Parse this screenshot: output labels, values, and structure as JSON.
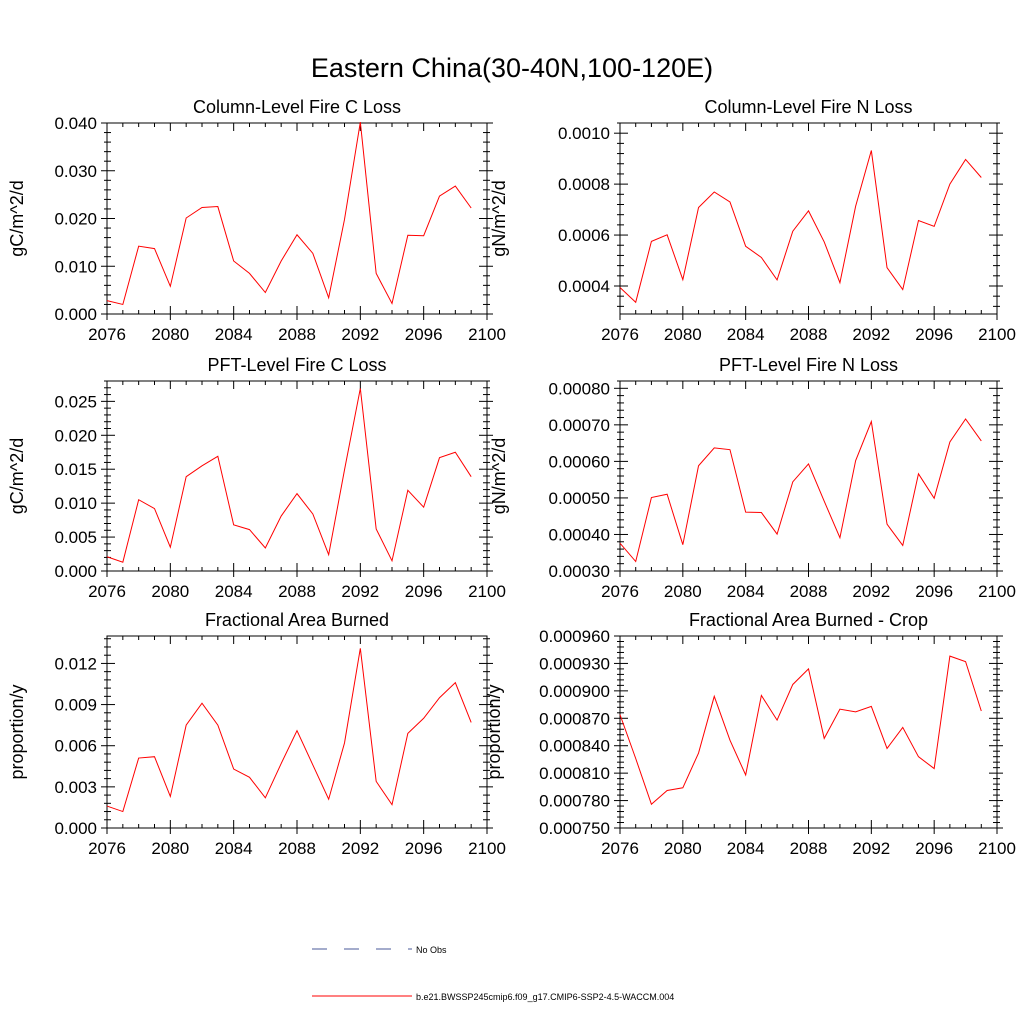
{
  "figure": {
    "title": "Eastern China(30-40N,100-120E)",
    "legend": [
      {
        "label": "No Obs",
        "color": "#4a5a9a",
        "style": "dashed"
      },
      {
        "label": "b.e21.BWSSP245cmip6.f09_g17.CMIP6-SSP2-4.5-WACCM.004",
        "color": "#ff0000",
        "style": "solid"
      }
    ]
  },
  "chart_data": [
    {
      "type": "line",
      "title": "Column-Level Fire C Loss",
      "ylabel": "gC/m^2/d",
      "xlim": [
        2076,
        2100
      ],
      "ylim": [
        0.0,
        0.04
      ],
      "xticks": [
        2076,
        2080,
        2084,
        2088,
        2092,
        2096,
        2100
      ],
      "yticks": [
        0.0,
        0.01,
        0.02,
        0.03,
        0.04
      ],
      "ytick_labels": [
        "0.000",
        "0.010",
        "0.020",
        "0.030",
        "0.040"
      ],
      "x": [
        2076,
        2077,
        2078,
        2079,
        2080,
        2081,
        2082,
        2083,
        2084,
        2085,
        2086,
        2087,
        2088,
        2089,
        2090,
        2091,
        2092,
        2093,
        2094,
        2095,
        2096,
        2097,
        2098,
        2099
      ],
      "series": [
        {
          "color": "#ff0000",
          "values": [
            0.0028,
            0.002,
            0.0142,
            0.0137,
            0.0058,
            0.0201,
            0.0223,
            0.0225,
            0.0111,
            0.0085,
            0.0045,
            0.0111,
            0.0166,
            0.0127,
            0.0034,
            0.0198,
            0.0402,
            0.0085,
            0.0022,
            0.0165,
            0.0164,
            0.0247,
            0.0268,
            0.0222
          ]
        }
      ]
    },
    {
      "type": "line",
      "title": "Column-Level Fire N Loss",
      "ylabel": "gN/m^2/d",
      "xlim": [
        2076,
        2100
      ],
      "ylim": [
        0.00029,
        0.00104
      ],
      "xticks": [
        2076,
        2080,
        2084,
        2088,
        2092,
        2096,
        2100
      ],
      "yticks": [
        0.0004,
        0.0006,
        0.0008,
        0.001
      ],
      "ytick_labels": [
        "0.0004",
        "0.0006",
        "0.0008",
        "0.0010"
      ],
      "x": [
        2076,
        2077,
        2078,
        2079,
        2080,
        2081,
        2082,
        2083,
        2084,
        2085,
        2086,
        2087,
        2088,
        2089,
        2090,
        2091,
        2092,
        2093,
        2094,
        2095,
        2096,
        2097,
        2098,
        2099
      ],
      "series": [
        {
          "color": "#ff0000",
          "values": [
            0.000394,
            0.000336,
            0.000575,
            0.000601,
            0.000425,
            0.000708,
            0.000769,
            0.00073,
            0.000556,
            0.000512,
            0.000424,
            0.000615,
            0.000695,
            0.000573,
            0.000413,
            0.000713,
            0.000932,
            0.000472,
            0.000386,
            0.000657,
            0.000634,
            0.0008,
            0.000897,
            0.000826
          ]
        }
      ]
    },
    {
      "type": "line",
      "title": "PFT-Level Fire C Loss",
      "ylabel": "gC/m^2/d",
      "xlim": [
        2076,
        2100
      ],
      "ylim": [
        0.0,
        0.028
      ],
      "xticks": [
        2076,
        2080,
        2084,
        2088,
        2092,
        2096,
        2100
      ],
      "yticks": [
        0.0,
        0.005,
        0.01,
        0.015,
        0.02,
        0.025
      ],
      "ytick_labels": [
        "0.000",
        "0.005",
        "0.010",
        "0.015",
        "0.020",
        "0.025"
      ],
      "x": [
        2076,
        2077,
        2078,
        2079,
        2080,
        2081,
        2082,
        2083,
        2084,
        2085,
        2086,
        2087,
        2088,
        2089,
        2090,
        2091,
        2092,
        2093,
        2094,
        2095,
        2096,
        2097,
        2098,
        2099
      ],
      "series": [
        {
          "color": "#ff0000",
          "values": [
            0.0021,
            0.0013,
            0.0105,
            0.0092,
            0.0035,
            0.0139,
            0.0155,
            0.0169,
            0.0068,
            0.0061,
            0.0034,
            0.0081,
            0.0114,
            0.0084,
            0.0024,
            0.0149,
            0.0269,
            0.0062,
            0.0015,
            0.0119,
            0.0094,
            0.0167,
            0.0175,
            0.0139
          ]
        }
      ]
    },
    {
      "type": "line",
      "title": "PFT-Level Fire N Loss",
      "ylabel": "gN/m^2/d",
      "xlim": [
        2076,
        2100
      ],
      "ylim": [
        0.0003,
        0.00082
      ],
      "xticks": [
        2076,
        2080,
        2084,
        2088,
        2092,
        2096,
        2100
      ],
      "yticks": [
        0.0003,
        0.0004,
        0.0005,
        0.0006,
        0.0007,
        0.0008
      ],
      "ytick_labels": [
        "0.00030",
        "0.00040",
        "0.00050",
        "0.00060",
        "0.00070",
        "0.00080"
      ],
      "x": [
        2076,
        2077,
        2078,
        2079,
        2080,
        2081,
        2082,
        2083,
        2084,
        2085,
        2086,
        2087,
        2088,
        2089,
        2090,
        2091,
        2092,
        2093,
        2094,
        2095,
        2096,
        2097,
        2098,
        2099
      ],
      "series": [
        {
          "color": "#ff0000",
          "values": [
            0.000376,
            0.000326,
            0.000501,
            0.00051,
            0.000372,
            0.000588,
            0.000637,
            0.000632,
            0.000461,
            0.00046,
            0.000401,
            0.000544,
            0.000593,
            0.000491,
            0.000391,
            0.000602,
            0.000709,
            0.000428,
            0.00037,
            0.000566,
            0.000499,
            0.000653,
            0.000716,
            0.000656
          ]
        }
      ]
    },
    {
      "type": "line",
      "title": "Fractional Area Burned",
      "ylabel": "proportion/y",
      "xlim": [
        2076,
        2100
      ],
      "ylim": [
        0.0,
        0.014
      ],
      "xticks": [
        2076,
        2080,
        2084,
        2088,
        2092,
        2096,
        2100
      ],
      "yticks": [
        0.0,
        0.003,
        0.006,
        0.009,
        0.012
      ],
      "ytick_labels": [
        "0.000",
        "0.003",
        "0.006",
        "0.009",
        "0.012"
      ],
      "x": [
        2076,
        2077,
        2078,
        2079,
        2080,
        2081,
        2082,
        2083,
        2084,
        2085,
        2086,
        2087,
        2088,
        2089,
        2090,
        2091,
        2092,
        2093,
        2094,
        2095,
        2096,
        2097,
        2098,
        2099
      ],
      "series": [
        {
          "color": "#ff0000",
          "values": [
            0.0016,
            0.0012,
            0.0051,
            0.0052,
            0.0023,
            0.0075,
            0.0091,
            0.0075,
            0.0043,
            0.0037,
            0.0022,
            0.0047,
            0.0071,
            0.0046,
            0.0021,
            0.0062,
            0.0131,
            0.0034,
            0.0017,
            0.0069,
            0.008,
            0.0095,
            0.0106,
            0.0077
          ]
        }
      ]
    },
    {
      "type": "line",
      "title": "Fractional Area Burned - Crop",
      "ylabel": "proportion/y",
      "xlim": [
        2076,
        2100
      ],
      "ylim": [
        0.00075,
        0.00096
      ],
      "xticks": [
        2076,
        2080,
        2084,
        2088,
        2092,
        2096,
        2100
      ],
      "yticks": [
        0.00075,
        0.00078,
        0.00081,
        0.00084,
        0.00087,
        0.0009,
        0.00093,
        0.00096
      ],
      "ytick_labels": [
        "0.000750",
        "0.000780",
        "0.000810",
        "0.000840",
        "0.000870",
        "0.000900",
        "0.000930",
        "0.000960"
      ],
      "x": [
        2076,
        2077,
        2078,
        2079,
        2080,
        2081,
        2082,
        2083,
        2084,
        2085,
        2086,
        2087,
        2088,
        2089,
        2090,
        2091,
        2092,
        2093,
        2094,
        2095,
        2096,
        2097,
        2098,
        2099
      ],
      "series": [
        {
          "color": "#ff0000",
          "values": [
            0.000874,
            0.000826,
            0.000776,
            0.000791,
            0.000794,
            0.000832,
            0.000894,
            0.000846,
            0.000808,
            0.000895,
            0.000868,
            0.000907,
            0.000924,
            0.000848,
            0.00088,
            0.000877,
            0.000883,
            0.000837,
            0.00086,
            0.000828,
            0.000815,
            0.000938,
            0.000932,
            0.000878
          ]
        }
      ]
    }
  ]
}
